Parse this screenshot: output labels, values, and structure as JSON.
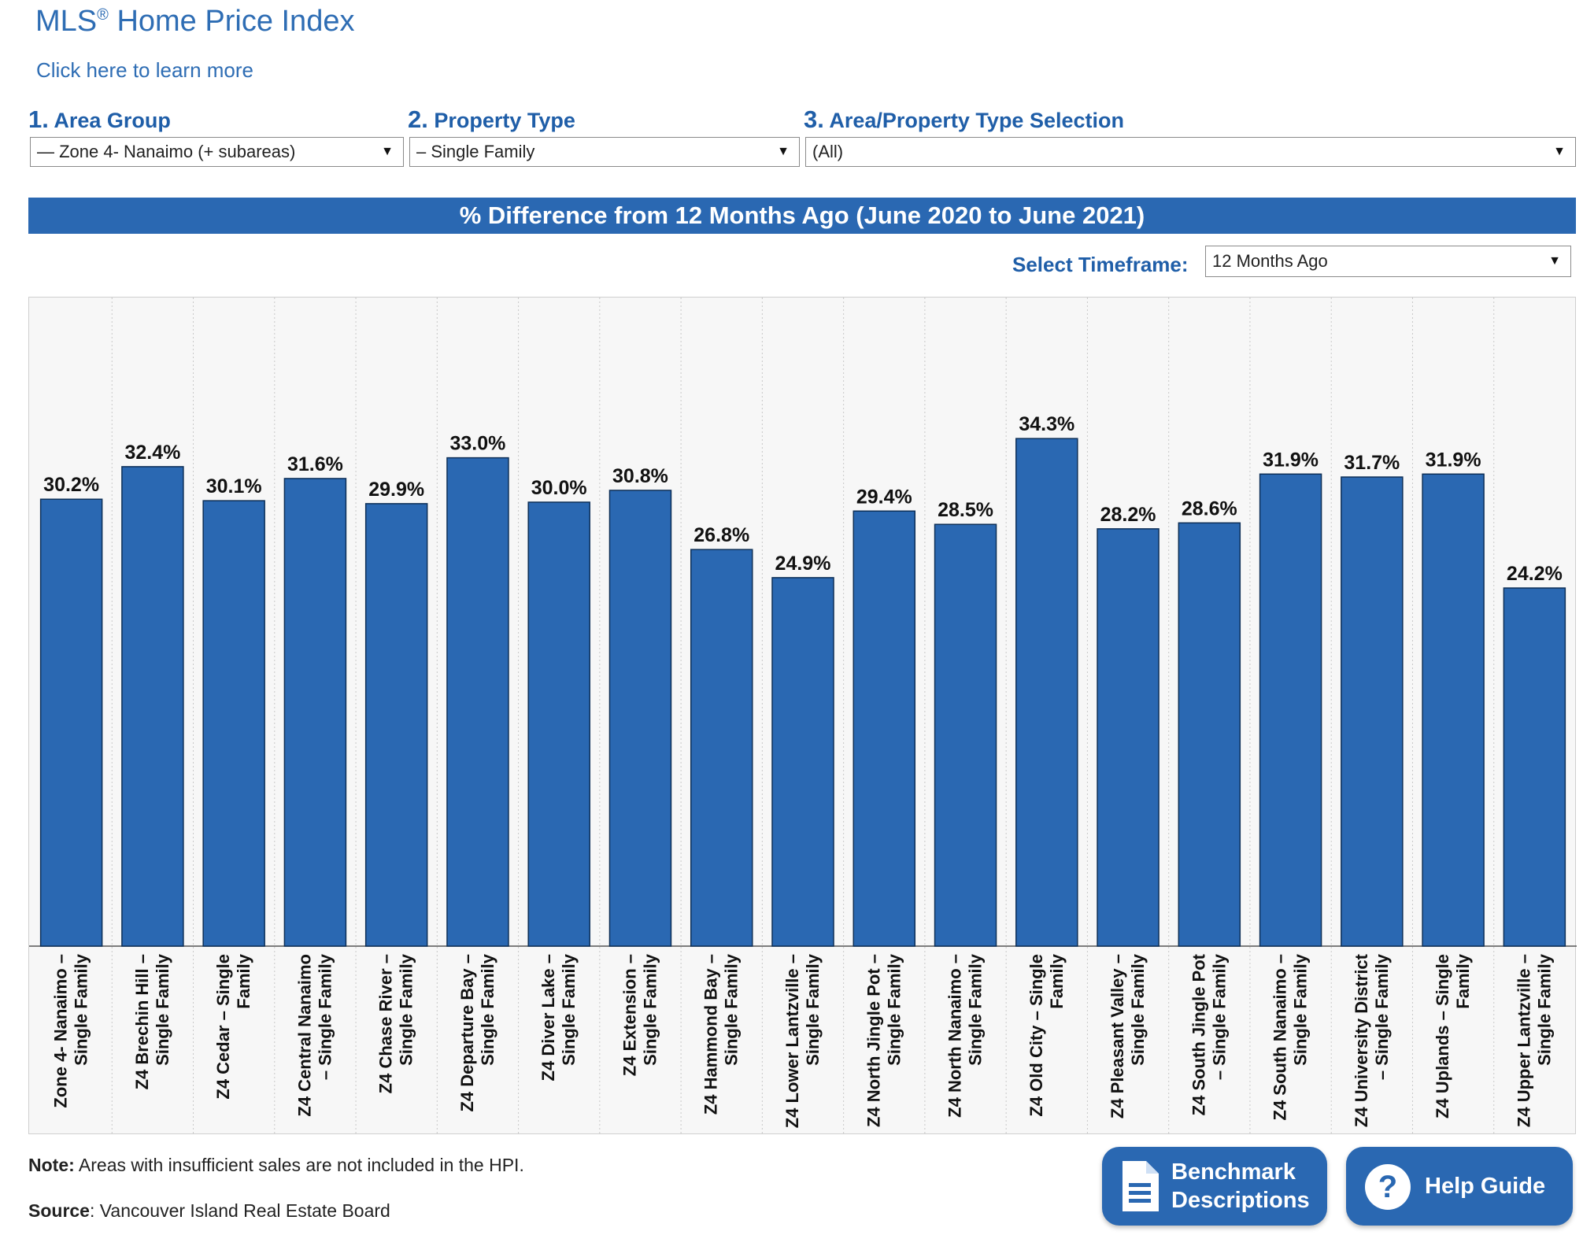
{
  "header": {
    "title": "MLS",
    "title_reg": "®",
    "title_rest": " Home Price Index",
    "learn_more": "Click here to learn more"
  },
  "filters": [
    {
      "num": "1.",
      "label": "Area Group",
      "value": "— Zone 4- Nanaimo (+ subareas)"
    },
    {
      "num": "2.",
      "label": "Property Type",
      "value": "– Single Family"
    },
    {
      "num": "3.",
      "label": "Area/Property Type Selection",
      "value": "(All)"
    }
  ],
  "banner": "% Difference from 12 Months Ago (June 2020 to June 2021)",
  "timeframe": {
    "label": "Select Timeframe:",
    "value": "12 Months Ago"
  },
  "chart_data": {
    "type": "bar",
    "title": "% Difference from 12 Months Ago (June 2020 to June 2021)",
    "categories": [
      "Zone 4- Nanaimo – Single Family",
      "Z4 Brechin Hill – Single Family",
      "Z4 Cedar – Single Family",
      "Z4 Central Nanaimo – Single Family",
      "Z4 Chase River – Single Family",
      "Z4 Departure Bay – Single Family",
      "Z4 Diver Lake – Single Family",
      "Z4 Extension – Single Family",
      "Z4 Hammond Bay – Single Family",
      "Z4 Lower Lantzville – Single Family",
      "Z4 North Jingle Pot – Single Family",
      "Z4 North Nanaimo – Single Family",
      "Z4 Old City – Single Family",
      "Z4 Pleasant Valley – Single Family",
      "Z4 South Jingle Pot – Single Family",
      "Z4 South Nanaimo – Single Family",
      "Z4 University District – Single Family",
      "Z4 Uplands – Single Family",
      "Z4 Upper Lantzville – Single Family"
    ],
    "tick_lines": [
      [
        "Zone 4- Nanaimo –",
        "Single Family"
      ],
      [
        "Z4 Brechin Hill –",
        "Single Family"
      ],
      [
        "Z4 Cedar – Single",
        "Family"
      ],
      [
        "Z4 Central Nanaimo",
        "– Single Family"
      ],
      [
        "Z4 Chase River –",
        "Single Family"
      ],
      [
        "Z4 Departure Bay –",
        "Single Family"
      ],
      [
        "Z4 Diver Lake –",
        "Single Family"
      ],
      [
        "Z4 Extension –",
        "Single Family"
      ],
      [
        "Z4 Hammond Bay –",
        "Single Family"
      ],
      [
        "Z4 Lower Lantzville –",
        "Single Family"
      ],
      [
        "Z4 North Jingle Pot –",
        "Single Family"
      ],
      [
        "Z4 North Nanaimo –",
        "Single Family"
      ],
      [
        "Z4 Old City – Single",
        "Family"
      ],
      [
        "Z4 Pleasant Valley –",
        "Single Family"
      ],
      [
        "Z4 South Jingle Pot",
        "– Single Family"
      ],
      [
        "Z4 South Nanaimo –",
        "Single Family"
      ],
      [
        "Z4 University District",
        "– Single Family"
      ],
      [
        "Z4 Uplands – Single",
        "Family"
      ],
      [
        "Z4 Upper Lantzville –",
        "Single Family"
      ]
    ],
    "values": [
      30.2,
      32.4,
      30.1,
      31.6,
      29.9,
      33.0,
      30.0,
      30.8,
      26.8,
      24.9,
      29.4,
      28.5,
      34.3,
      28.2,
      28.6,
      31.9,
      31.7,
      31.9,
      24.2
    ],
    "value_labels": [
      "30.2%",
      "32.4%",
      "30.1%",
      "31.6%",
      "29.9%",
      "33.0%",
      "30.0%",
      "30.8%",
      "26.8%",
      "24.9%",
      "29.4%",
      "28.5%",
      "34.3%",
      "28.2%",
      "28.6%",
      "31.9%",
      "31.7%",
      "31.9%",
      "24.2%"
    ],
    "ylim": [
      0,
      35
    ],
    "grid": false,
    "bar_color": "#2a68b2"
  },
  "note": {
    "bold": "Note:",
    "text": " Areas with insufficient sales are not included in the HPI."
  },
  "source": {
    "bold": "Source",
    "text": ": Vancouver Island Real Estate Board"
  },
  "buttons": {
    "benchmark": [
      "Benchmark",
      "Descriptions"
    ],
    "help": "Help Guide"
  },
  "colors": {
    "accent": "#2a68b2",
    "heading": "#1f5ea8"
  }
}
